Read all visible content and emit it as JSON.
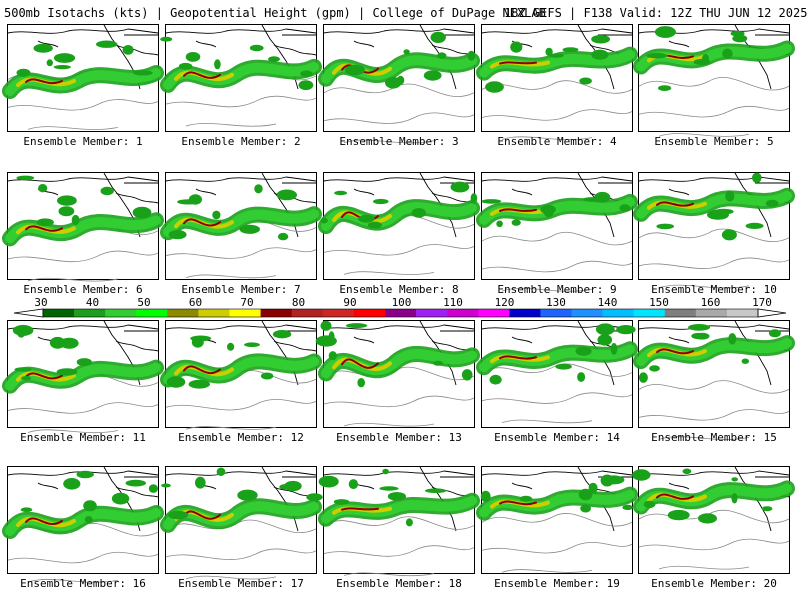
{
  "header": {
    "title": "500mb Isotachs (kts) | Geopotential Height (gpm) | College of DuPage NEXLAB",
    "run": "18Z GEFS | F138 Valid: 12Z THU JUN 12 2025"
  },
  "colorbar": {
    "ticks": [
      "30",
      "40",
      "50",
      "60",
      "70",
      "80",
      "90",
      "100",
      "110",
      "120",
      "130",
      "140",
      "150",
      "160",
      "170"
    ],
    "colors": [
      "#006400",
      "#1e9e1e",
      "#32cd32",
      "#00ff00",
      "#8b8b00",
      "#cdcd00",
      "#ffff00",
      "#8b0000",
      "#b22222",
      "#cd2626",
      "#ff0000",
      "#8b008b",
      "#a020f0",
      "#cd00cd",
      "#ff00ff",
      "#0000cd",
      "#1e64ff",
      "#1e90ff",
      "#00bfff",
      "#00e5ff",
      "#7f7f7f",
      "#a9a9a9",
      "#c8c8c8"
    ]
  },
  "panels": [
    {
      "label": "Ensemble Member: 1"
    },
    {
      "label": "Ensemble Member: 2"
    },
    {
      "label": "Ensemble Member: 3"
    },
    {
      "label": "Ensemble Member: 4"
    },
    {
      "label": "Ensemble Member: 5"
    },
    {
      "label": "Ensemble Member: 6"
    },
    {
      "label": "Ensemble Member: 7"
    },
    {
      "label": "Ensemble Member: 8"
    },
    {
      "label": "Ensemble Member: 9"
    },
    {
      "label": "Ensemble Member: 10"
    },
    {
      "label": "Ensemble Member: 11"
    },
    {
      "label": "Ensemble Member: 12"
    },
    {
      "label": "Ensemble Member: 13"
    },
    {
      "label": "Ensemble Member: 14"
    },
    {
      "label": "Ensemble Member: 15"
    },
    {
      "label": "Ensemble Member: 16"
    },
    {
      "label": "Ensemble Member: 17"
    },
    {
      "label": "Ensemble Member: 18"
    },
    {
      "label": "Ensemble Member: 19"
    },
    {
      "label": "Ensemble Member: 20"
    }
  ]
}
